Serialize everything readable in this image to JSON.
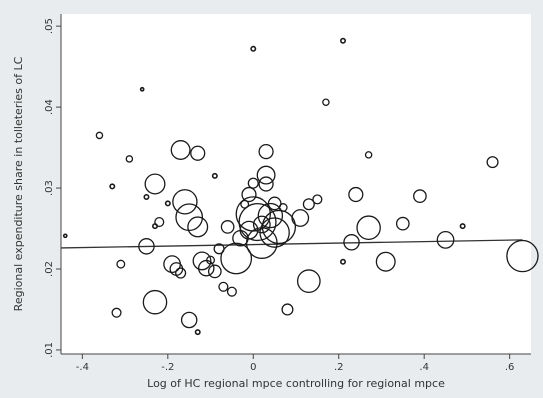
{
  "chart_data": {
    "type": "scatter",
    "title": "",
    "xlabel": "Log of HC regional mpce controlling for regional mpce",
    "ylabel": "Regional expenditure share in tolleteries of LC",
    "xlim": [
      -0.45,
      0.65
    ],
    "ylim": [
      0.0095,
      0.0515
    ],
    "xticks": [
      -0.4,
      -0.2,
      0,
      0.2,
      0.4,
      0.6
    ],
    "xtick_labels": [
      "-.4",
      "-.2",
      "0",
      ".2",
      ".4",
      ".6"
    ],
    "yticks": [
      0.01,
      0.02,
      0.03,
      0.04,
      0.05
    ],
    "ytick_labels": [
      ".01",
      ".02",
      ".03",
      ".04",
      ".05"
    ],
    "grid": false,
    "marker": "hollow circle, size proportional to weight",
    "fit_line": {
      "x": [
        -0.45,
        0.63
      ],
      "y": [
        0.0226,
        0.0236
      ]
    },
    "points": [
      {
        "x": -0.44,
        "y": 0.0241,
        "w": 0.5
      },
      {
        "x": -0.36,
        "y": 0.0365,
        "w": 2
      },
      {
        "x": -0.33,
        "y": 0.0302,
        "w": 1
      },
      {
        "x": -0.29,
        "y": 0.0336,
        "w": 2
      },
      {
        "x": -0.31,
        "y": 0.0206,
        "w": 3
      },
      {
        "x": -0.32,
        "y": 0.0146,
        "w": 4
      },
      {
        "x": -0.26,
        "y": 0.0422,
        "w": 0.5
      },
      {
        "x": -0.25,
        "y": 0.0289,
        "w": 1
      },
      {
        "x": -0.25,
        "y": 0.0228,
        "w": 12
      },
      {
        "x": -0.23,
        "y": 0.0305,
        "w": 20
      },
      {
        "x": -0.23,
        "y": 0.0253,
        "w": 1
      },
      {
        "x": -0.22,
        "y": 0.0258,
        "w": 4
      },
      {
        "x": -0.2,
        "y": 0.0281,
        "w": 1
      },
      {
        "x": -0.19,
        "y": 0.0206,
        "w": 14
      },
      {
        "x": -0.18,
        "y": 0.02,
        "w": 8
      },
      {
        "x": -0.17,
        "y": 0.0195,
        "w": 5
      },
      {
        "x": -0.23,
        "y": 0.0159,
        "w": 28
      },
      {
        "x": -0.17,
        "y": 0.0347,
        "w": 18
      },
      {
        "x": -0.16,
        "y": 0.0283,
        "w": 30
      },
      {
        "x": -0.15,
        "y": 0.0264,
        "w": 36
      },
      {
        "x": -0.13,
        "y": 0.0343,
        "w": 10
      },
      {
        "x": -0.13,
        "y": 0.0252,
        "w": 20
      },
      {
        "x": -0.12,
        "y": 0.021,
        "w": 16
      },
      {
        "x": -0.11,
        "y": 0.0201,
        "w": 12
      },
      {
        "x": -0.1,
        "y": 0.0211,
        "w": 3
      },
      {
        "x": -0.09,
        "y": 0.0315,
        "w": 1
      },
      {
        "x": -0.09,
        "y": 0.0197,
        "w": 8
      },
      {
        "x": -0.08,
        "y": 0.0225,
        "w": 5
      },
      {
        "x": -0.07,
        "y": 0.0178,
        "w": 4
      },
      {
        "x": -0.15,
        "y": 0.0137,
        "w": 12
      },
      {
        "x": -0.13,
        "y": 0.0122,
        "w": 1
      },
      {
        "x": -0.06,
        "y": 0.0252,
        "w": 8
      },
      {
        "x": -0.05,
        "y": 0.0172,
        "w": 4
      },
      {
        "x": -0.04,
        "y": 0.0213,
        "w": 48
      },
      {
        "x": -0.03,
        "y": 0.0238,
        "w": 12
      },
      {
        "x": -0.02,
        "y": 0.028,
        "w": 3
      },
      {
        "x": -0.01,
        "y": 0.0248,
        "w": 16
      },
      {
        "x": -0.01,
        "y": 0.0292,
        "w": 10
      },
      {
        "x": 0.0,
        "y": 0.0306,
        "w": 5
      },
      {
        "x": 0.0,
        "y": 0.0268,
        "w": 60
      },
      {
        "x": 0.0,
        "y": 0.0472,
        "w": 1
      },
      {
        "x": 0.01,
        "y": 0.0258,
        "w": 70
      },
      {
        "x": 0.02,
        "y": 0.0232,
        "w": 48
      },
      {
        "x": 0.02,
        "y": 0.0255,
        "w": 14
      },
      {
        "x": 0.03,
        "y": 0.0345,
        "w": 10
      },
      {
        "x": 0.03,
        "y": 0.0305,
        "w": 10
      },
      {
        "x": 0.03,
        "y": 0.0316,
        "w": 16
      },
      {
        "x": 0.04,
        "y": 0.0266,
        "w": 30
      },
      {
        "x": 0.05,
        "y": 0.0281,
        "w": 8
      },
      {
        "x": 0.05,
        "y": 0.0245,
        "w": 44
      },
      {
        "x": 0.06,
        "y": 0.0252,
        "w": 56
      },
      {
        "x": 0.07,
        "y": 0.0276,
        "w": 3
      },
      {
        "x": 0.08,
        "y": 0.015,
        "w": 6
      },
      {
        "x": 0.11,
        "y": 0.0263,
        "w": 14
      },
      {
        "x": 0.13,
        "y": 0.028,
        "w": 6
      },
      {
        "x": 0.15,
        "y": 0.0286,
        "w": 4
      },
      {
        "x": 0.13,
        "y": 0.0185,
        "w": 26
      },
      {
        "x": 0.17,
        "y": 0.0406,
        "w": 2
      },
      {
        "x": 0.21,
        "y": 0.0482,
        "w": 1
      },
      {
        "x": 0.21,
        "y": 0.0209,
        "w": 1
      },
      {
        "x": 0.24,
        "y": 0.0292,
        "w": 10
      },
      {
        "x": 0.23,
        "y": 0.0233,
        "w": 12
      },
      {
        "x": 0.27,
        "y": 0.0341,
        "w": 2
      },
      {
        "x": 0.27,
        "y": 0.0251,
        "w": 28
      },
      {
        "x": 0.31,
        "y": 0.0209,
        "w": 18
      },
      {
        "x": 0.35,
        "y": 0.0256,
        "w": 8
      },
      {
        "x": 0.39,
        "y": 0.029,
        "w": 8
      },
      {
        "x": 0.45,
        "y": 0.0236,
        "w": 14
      },
      {
        "x": 0.49,
        "y": 0.0253,
        "w": 1
      },
      {
        "x": 0.56,
        "y": 0.0332,
        "w": 6
      },
      {
        "x": 0.63,
        "y": 0.0216,
        "w": 50
      }
    ]
  }
}
